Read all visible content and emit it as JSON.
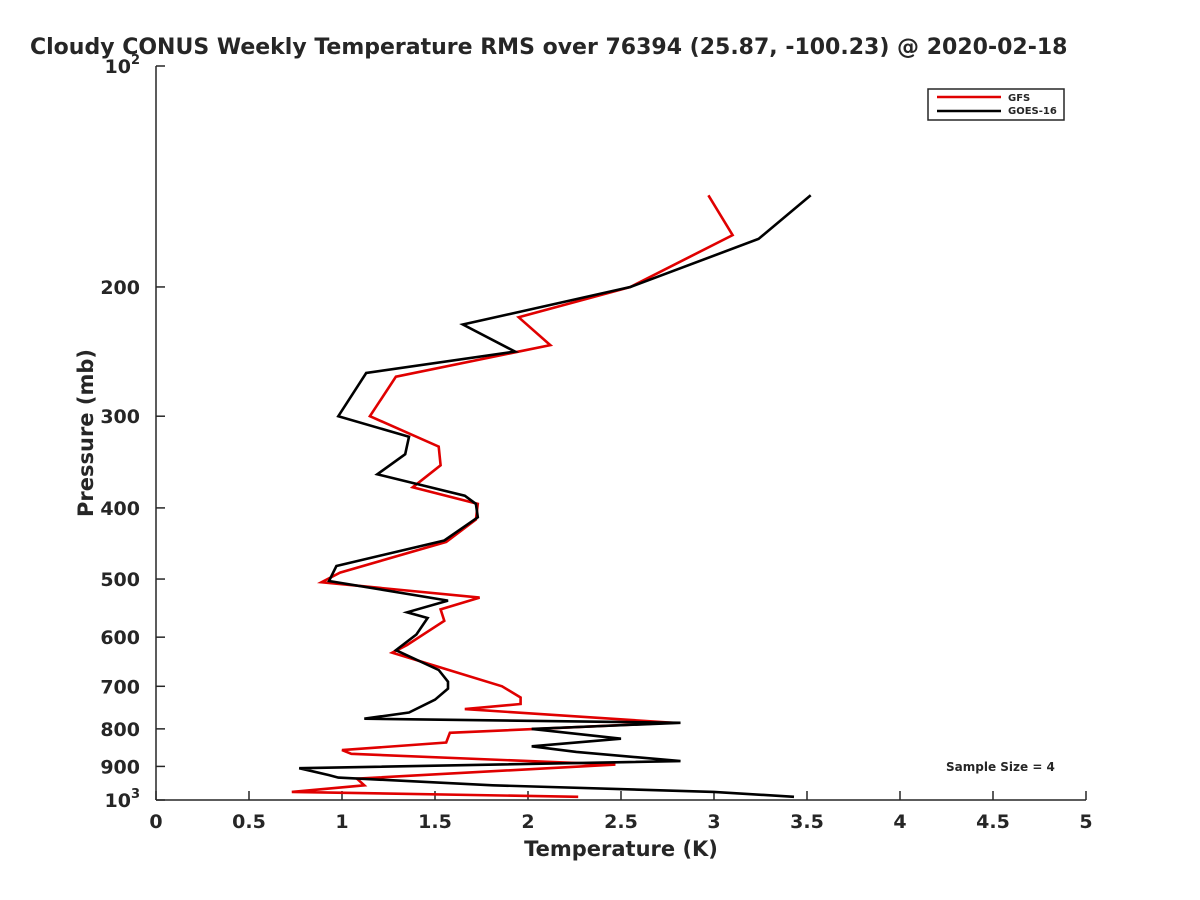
{
  "chart_data": {
    "type": "line",
    "title": "Cloudy CONUS Weekly Temperature RMS over 76394 (25.87, -100.23) @ 2020-02-18",
    "xlabel": "Temperature (K)",
    "ylabel": "Pressure (mb)",
    "xlim": [
      0,
      5
    ],
    "ylim": [
      100,
      1000
    ],
    "y_scale": "log",
    "y_reversed": true,
    "x_ticks": [
      0,
      0.5,
      1,
      1.5,
      2,
      2.5,
      3,
      3.5,
      4,
      4.5,
      5
    ],
    "x_tick_labels": [
      "0",
      "0.5",
      "1",
      "1.5",
      "2",
      "2.5",
      "3",
      "3.5",
      "4",
      "4.5",
      "5"
    ],
    "y_ticks": [
      100,
      200,
      300,
      400,
      500,
      600,
      700,
      800,
      900,
      1000
    ],
    "y_tick_labels": [
      {
        "base": "10",
        "exp": "2"
      },
      {
        "base": "200",
        "exp": ""
      },
      {
        "base": "300",
        "exp": ""
      },
      {
        "base": "400",
        "exp": ""
      },
      {
        "base": "500",
        "exp": ""
      },
      {
        "base": "600",
        "exp": ""
      },
      {
        "base": "700",
        "exp": ""
      },
      {
        "base": "800",
        "exp": ""
      },
      {
        "base": "900",
        "exp": ""
      },
      {
        "base": "10",
        "exp": "3"
      }
    ],
    "legend_position": "top-right",
    "grid": false,
    "annotation": "Sample Size = 4",
    "series": [
      {
        "name": "GFS",
        "color": "#e00000",
        "points": [
          [
            2.97,
            150
          ],
          [
            3.1,
            170
          ],
          [
            2.55,
            200
          ],
          [
            1.95,
            220
          ],
          [
            2.12,
            240
          ],
          [
            1.29,
            265
          ],
          [
            1.15,
            300
          ],
          [
            1.52,
            330
          ],
          [
            1.53,
            350
          ],
          [
            1.38,
            375
          ],
          [
            1.73,
            395
          ],
          [
            1.72,
            415
          ],
          [
            1.56,
            445
          ],
          [
            0.99,
            490
          ],
          [
            0.89,
            505
          ],
          [
            1.74,
            530
          ],
          [
            1.53,
            550
          ],
          [
            1.55,
            570
          ],
          [
            1.35,
            615
          ],
          [
            1.27,
            630
          ],
          [
            1.53,
            660
          ],
          [
            1.86,
            700
          ],
          [
            1.96,
            725
          ],
          [
            1.96,
            740
          ],
          [
            1.66,
            752
          ],
          [
            2.78,
            785
          ],
          [
            1.58,
            810
          ],
          [
            1.56,
            835
          ],
          [
            1.0,
            855
          ],
          [
            1.05,
            865
          ],
          [
            2.47,
            895
          ],
          [
            1.08,
            935
          ],
          [
            1.12,
            955
          ],
          [
            0.73,
            975
          ],
          [
            2.27,
            990
          ]
        ]
      },
      {
        "name": "GOES-16",
        "color": "#000000",
        "points": [
          [
            3.52,
            150
          ],
          [
            3.24,
            172
          ],
          [
            2.55,
            200
          ],
          [
            1.65,
            225
          ],
          [
            1.93,
            245
          ],
          [
            1.13,
            262
          ],
          [
            0.98,
            300
          ],
          [
            1.36,
            320
          ],
          [
            1.34,
            338
          ],
          [
            1.19,
            360
          ],
          [
            1.66,
            385
          ],
          [
            1.72,
            395
          ],
          [
            1.73,
            412
          ],
          [
            1.55,
            443
          ],
          [
            0.97,
            480
          ],
          [
            0.93,
            503
          ],
          [
            1.57,
            535
          ],
          [
            1.35,
            555
          ],
          [
            1.46,
            565
          ],
          [
            1.4,
            595
          ],
          [
            1.29,
            625
          ],
          [
            1.52,
            665
          ],
          [
            1.57,
            690
          ],
          [
            1.57,
            705
          ],
          [
            1.5,
            730
          ],
          [
            1.36,
            760
          ],
          [
            1.12,
            775
          ],
          [
            2.82,
            785
          ],
          [
            2.02,
            800
          ],
          [
            2.5,
            825
          ],
          [
            2.02,
            845
          ],
          [
            2.26,
            860
          ],
          [
            2.82,
            885
          ],
          [
            0.77,
            905
          ],
          [
            0.93,
            925
          ],
          [
            0.98,
            932
          ],
          [
            1.81,
            955
          ],
          [
            3.0,
            975
          ],
          [
            3.43,
            990
          ]
        ]
      }
    ]
  }
}
